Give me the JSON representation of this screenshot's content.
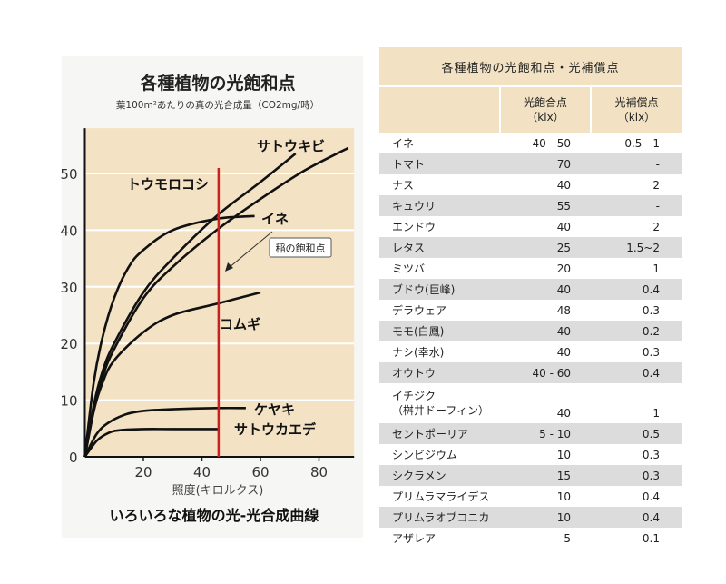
{
  "chart_data": {
    "type": "line",
    "title": "各種植物の光飽和点",
    "subtitle": "葉100m²あたりの真の光合成量（CO2mg/時）",
    "xlabel": "照度(キロルクス)",
    "caption": "いろいろな植物の光-光合成曲線",
    "xlim": [
      0,
      92
    ],
    "ylim": [
      0,
      58
    ],
    "x_ticks": [
      20,
      40,
      60,
      80
    ],
    "y_ticks": [
      0,
      10,
      20,
      30,
      40,
      50
    ],
    "grid": true,
    "series": [
      {
        "name": "サトウキビ",
        "x": [
          0,
          3,
          6,
          10,
          20,
          30,
          45,
          60,
          72
        ],
        "y": [
          0,
          9,
          15,
          20,
          29,
          35,
          42.5,
          48.5,
          53.5
        ]
      },
      {
        "name": "トウモロコシ",
        "x": [
          0,
          3,
          6,
          10,
          20,
          30,
          45,
          60,
          75,
          90
        ],
        "y": [
          0,
          8,
          14,
          19,
          28,
          33.5,
          40,
          45.5,
          50.5,
          54.5
        ]
      },
      {
        "name": "イネ",
        "x": [
          0,
          3,
          6,
          10,
          15,
          20,
          30,
          45,
          58
        ],
        "y": [
          0,
          13,
          21,
          28,
          33.5,
          36.5,
          40,
          42,
          42.5
        ]
      },
      {
        "name": "コムギ",
        "x": [
          0,
          3,
          6,
          10,
          20,
          30,
          45,
          60
        ],
        "y": [
          0,
          8,
          13,
          17,
          22,
          25,
          27,
          29
        ]
      },
      {
        "name": "ケヤキ",
        "x": [
          0,
          4,
          8,
          14,
          20,
          30,
          45,
          55
        ],
        "y": [
          0,
          4,
          6,
          7.5,
          8.1,
          8.4,
          8.6,
          8.6
        ]
      },
      {
        "name": "サトウカエデ",
        "x": [
          0,
          4,
          8,
          12,
          20,
          30,
          46
        ],
        "y": [
          0,
          2.8,
          4.2,
          4.7,
          4.9,
          4.9,
          4.9
        ]
      }
    ],
    "saturation_line": {
      "x": 45.7,
      "color": "#cc1f1f"
    },
    "annotation": "稲の飽和点"
  },
  "table": {
    "title": "各種植物の光飽和点・光補償点",
    "headers": {
      "saturation": [
        "光飽合点",
        "（klx）"
      ],
      "compensation": [
        "光補償点",
        "（klx）"
      ]
    },
    "rows": [
      {
        "name": [
          "イネ"
        ],
        "sat": "40 - 50",
        "comp": "0.5 - 1"
      },
      {
        "name": [
          "トマト"
        ],
        "sat": "70",
        "comp": "-"
      },
      {
        "name": [
          "ナス"
        ],
        "sat": "40",
        "comp": "2"
      },
      {
        "name": [
          "キュウリ"
        ],
        "sat": "55",
        "comp": "-"
      },
      {
        "name": [
          "エンドウ"
        ],
        "sat": "40",
        "comp": "2"
      },
      {
        "name": [
          "レタス"
        ],
        "sat": "25",
        "comp": "1.5~2"
      },
      {
        "name": [
          "ミツバ"
        ],
        "sat": "20",
        "comp": "1"
      },
      {
        "name": [
          "ブドウ(巨峰)"
        ],
        "sat": "40",
        "comp": "0.4"
      },
      {
        "name": [
          "デラウェア"
        ],
        "sat": "48",
        "comp": "0.3"
      },
      {
        "name": [
          "モモ(白鳳)"
        ],
        "sat": "40",
        "comp": "0.2"
      },
      {
        "name": [
          "ナシ(幸水)"
        ],
        "sat": "40",
        "comp": "0.3"
      },
      {
        "name": [
          "オウトウ"
        ],
        "sat": "40 - 60",
        "comp": "0.4"
      },
      {
        "name": [
          "イチジク",
          "（桝井ドーフィン）"
        ],
        "sat": "40",
        "comp": "1"
      },
      {
        "name": [
          "セントポーリア"
        ],
        "sat": "5 - 10",
        "comp": "0.5"
      },
      {
        "name": [
          "シンビジウム"
        ],
        "sat": "10",
        "comp": "0.3"
      },
      {
        "name": [
          "シクラメン"
        ],
        "sat": "15",
        "comp": "0.3"
      },
      {
        "name": [
          "プリムラマライデス"
        ],
        "sat": "10",
        "comp": "0.4"
      },
      {
        "name": [
          "プリムラオブコニカ"
        ],
        "sat": "10",
        "comp": "0.4"
      },
      {
        "name": [
          "アザレア"
        ],
        "sat": "5",
        "comp": "0.1"
      }
    ]
  },
  "colors": {
    "plot_bg": "#f3e2c4",
    "header_bg": "#f2e2c3",
    "stripe": "#dcdcdc",
    "red_line": "#cc1f1f"
  }
}
